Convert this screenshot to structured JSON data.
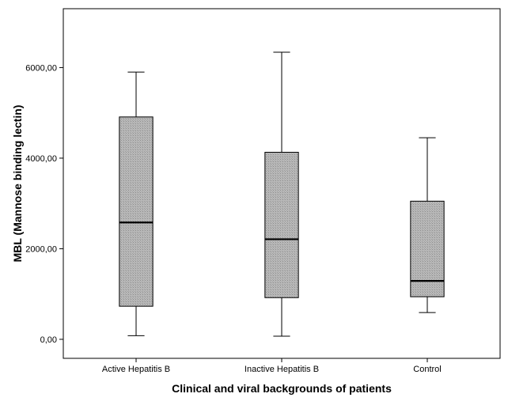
{
  "chart_data": {
    "type": "boxplot",
    "xlabel": "Clinical and viral backgrounds of patients",
    "ylabel": "MBL (Mannose binding lectin)",
    "ylim": [
      -420,
      7300
    ],
    "yticks": [
      0,
      2000,
      4000,
      6000
    ],
    "ytick_labels": [
      "0,00",
      "2000,00",
      "4000,00",
      "6000,00"
    ],
    "grid": false,
    "legend": "none",
    "colors": {
      "box_fill": "#b3b3b3",
      "box_stroke": "#000000",
      "median": "#000000",
      "whisker": "#000000",
      "axis": "#000000"
    },
    "categories": [
      "Active Hepatitis B",
      "Inactive Hepatitis B",
      "Control"
    ],
    "boxes": [
      {
        "category": "Active Hepatitis B",
        "min": 80,
        "q1": 730,
        "median": 2580,
        "q3": 4910,
        "max": 5900
      },
      {
        "category": "Inactive Hepatitis B",
        "min": 70,
        "q1": 920,
        "median": 2210,
        "q3": 4130,
        "max": 6340
      },
      {
        "category": "Control",
        "min": 590,
        "q1": 940,
        "median": 1290,
        "q3": 3050,
        "max": 4450
      }
    ]
  }
}
